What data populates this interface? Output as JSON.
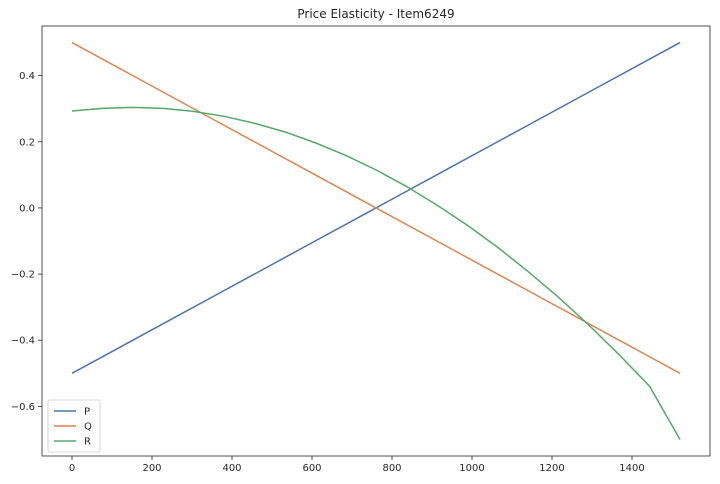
{
  "chart_data": {
    "type": "line",
    "title": "Price Elasticity - Item6249",
    "xlabel": "",
    "ylabel": "",
    "xlim": [
      -75,
      1595
    ],
    "ylim": [
      -0.75,
      0.55
    ],
    "xticks": [
      0,
      200,
      400,
      600,
      800,
      1000,
      1200,
      1400
    ],
    "yticks": [
      -0.6,
      -0.4,
      -0.2,
      0.0,
      0.2,
      0.4
    ],
    "ytick_labels": [
      "−0.6",
      "−0.4",
      "−0.2",
      "0.0",
      "0.2",
      "0.4"
    ],
    "grid": false,
    "legend_position": "lower-left",
    "series": [
      {
        "name": "P",
        "color": "#4c72b0",
        "x": [
          0,
          190,
          380,
          570,
          760,
          950,
          1140,
          1330,
          1520
        ],
        "y": [
          -0.5,
          -0.375,
          -0.25,
          -0.125,
          0.0,
          0.125,
          0.25,
          0.375,
          0.5
        ]
      },
      {
        "name": "Q",
        "color": "#dd8452",
        "x": [
          0,
          190,
          380,
          570,
          760,
          950,
          1140,
          1330,
          1520
        ],
        "y": [
          0.5,
          0.375,
          0.25,
          0.125,
          0.0,
          -0.125,
          -0.25,
          -0.375,
          -0.5
        ]
      },
      {
        "name": "R",
        "color": "#55a868",
        "x": [
          0,
          76,
          152,
          228,
          304,
          380,
          456,
          532,
          608,
          684,
          760,
          836,
          912,
          988,
          1064,
          1140,
          1216,
          1292,
          1368,
          1444,
          1520
        ],
        "y": [
          0.293,
          0.301,
          0.304,
          0.301,
          0.292,
          0.277,
          0.256,
          0.23,
          0.197,
          0.159,
          0.115,
          0.065,
          0.009,
          -0.052,
          -0.119,
          -0.192,
          -0.27,
          -0.354,
          -0.444,
          -0.539,
          -0.7
        ]
      }
    ]
  }
}
